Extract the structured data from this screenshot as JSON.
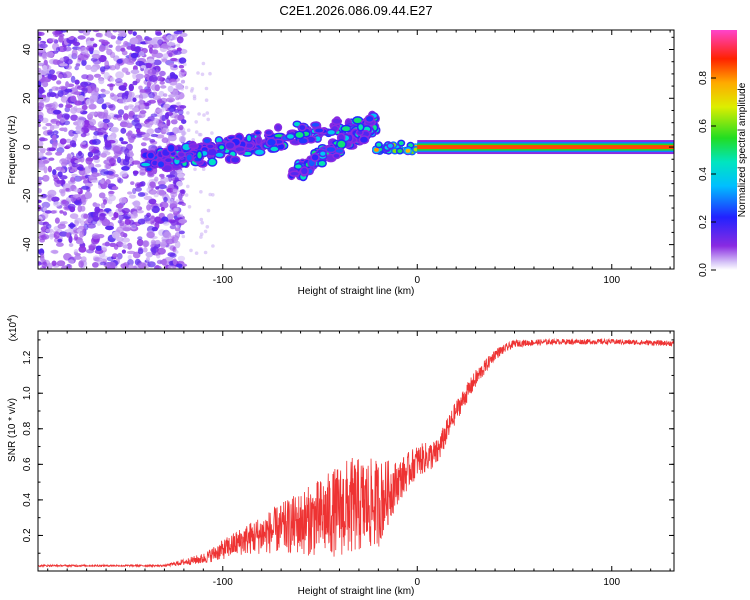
{
  "figure_title": "C2E1.2026.086.09.44.E27",
  "chart_data": [
    {
      "type": "heatmap",
      "name": "spectrogram",
      "xlabel": "Height of straight line (km)",
      "ylabel": "Frequency (Hz)",
      "xlim": [
        -195,
        132
      ],
      "ylim": [
        -50,
        48
      ],
      "x_ticks": [
        -100,
        0,
        100
      ],
      "y_ticks": [
        40,
        20,
        0,
        -20,
        -40
      ],
      "colorbar": {
        "label": "Normalized spectral amplitude",
        "range": [
          0,
          1
        ],
        "ticks": [
          "0.0",
          "0.2",
          "0.4",
          "0.6",
          "0.8"
        ]
      },
      "features": {
        "noise_region_x": [
          -195,
          -120
        ],
        "stable_line": {
          "x": [
            0,
            132
          ],
          "y": 0,
          "amplitude": 0.85
        },
        "upper_branch": {
          "x": [
            -140,
            -20
          ],
          "y": [
            -6,
            10
          ]
        },
        "lower_branch": {
          "x": [
            -65,
            -22
          ],
          "y": [
            -12,
            9
          ]
        }
      }
    },
    {
      "type": "line",
      "name": "snr",
      "xlabel": "Height of straight line (km)",
      "ylabel": "SNR (10 * v/v)",
      "scale_label": "(x10",
      "scale_exponent": "4",
      "xlim": [
        -195,
        132
      ],
      "ylim": [
        0,
        1.35
      ],
      "x_ticks": [
        -100,
        0,
        100
      ],
      "y_ticks": [
        0.2,
        0.4,
        0.6,
        0.8,
        1.0,
        1.2
      ],
      "color": "#ee3333",
      "trend": {
        "x": [
          -195,
          -130,
          -110,
          -90,
          -70,
          -50,
          -35,
          -20,
          -10,
          0,
          10,
          20,
          30,
          40,
          50,
          70,
          100,
          132
        ],
        "y": [
          0.03,
          0.03,
          0.07,
          0.17,
          0.24,
          0.3,
          0.36,
          0.38,
          0.5,
          0.62,
          0.66,
          0.9,
          1.08,
          1.22,
          1.28,
          1.29,
          1.29,
          1.28
        ],
        "noise_amplitude": [
          0.005,
          0.005,
          0.03,
          0.08,
          0.14,
          0.22,
          0.28,
          0.25,
          0.12,
          0.09,
          0.08,
          0.06,
          0.05,
          0.03,
          0.02,
          0.015,
          0.015,
          0.015
        ]
      }
    }
  ]
}
